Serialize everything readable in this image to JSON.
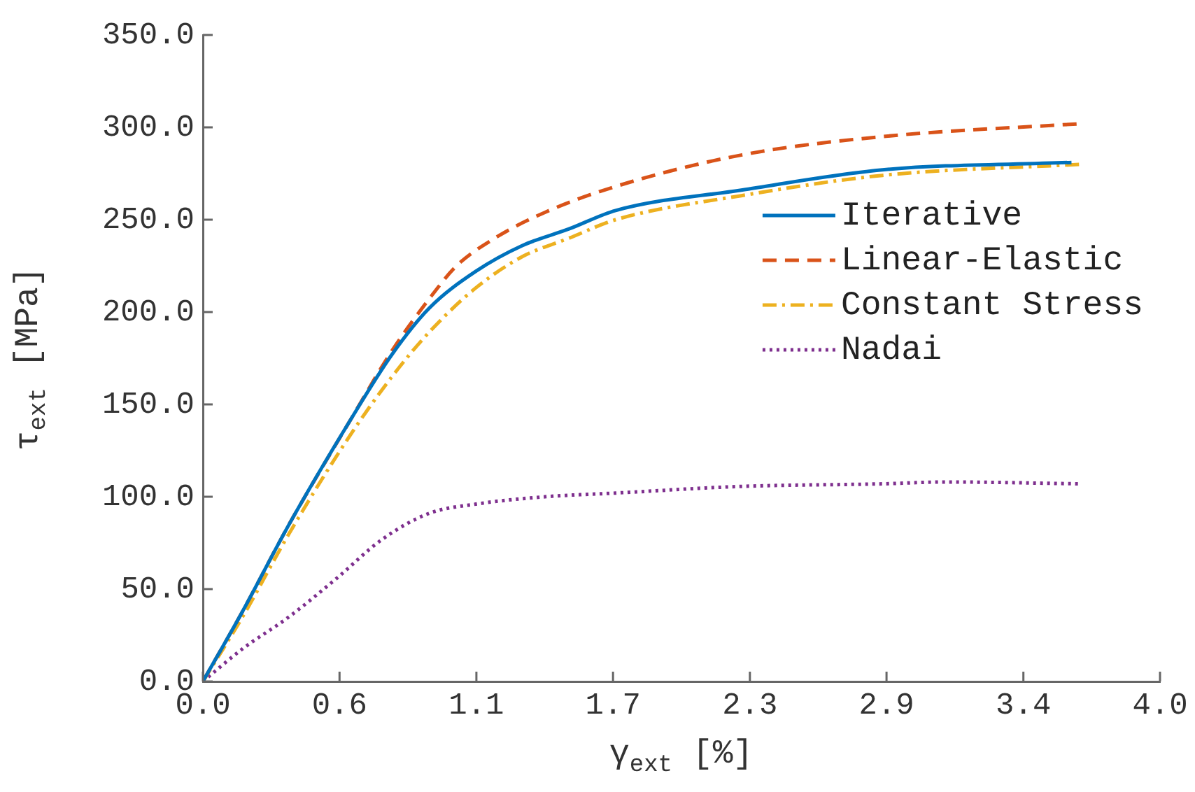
{
  "chart_data": {
    "type": "line",
    "xlabel": "γ$_{ext}$ [%]",
    "ylabel": "τ$_{ext}$ [MPa]",
    "xlim": [
      0,
      4.0
    ],
    "xticks": [
      {
        "value": 0,
        "label": "0.0"
      },
      {
        "value": 0.571,
        "label": "0.6"
      },
      {
        "value": 1.143,
        "label": "1.1"
      },
      {
        "value": 1.714,
        "label": "1.7"
      },
      {
        "value": 2.286,
        "label": "2.3"
      },
      {
        "value": 2.857,
        "label": "2.9"
      },
      {
        "value": 3.429,
        "label": "3.4"
      },
      {
        "value": 4.0,
        "label": "4.0"
      }
    ],
    "ylim": [
      0,
      350
    ],
    "yticks": [
      {
        "value": 0,
        "label": "0.0"
      },
      {
        "value": 50,
        "label": "50.0"
      },
      {
        "value": 100,
        "label": "100.0"
      },
      {
        "value": 150,
        "label": "150.0"
      },
      {
        "value": 200,
        "label": "200.0"
      },
      {
        "value": 250,
        "label": "250.0"
      },
      {
        "value": 300,
        "label": "300.0"
      },
      {
        "value": 350,
        "label": "350.0"
      }
    ],
    "grid": false,
    "legend": "right",
    "marker": "none",
    "series": [
      {
        "name": "Iterative",
        "color": "#0072bd",
        "line_style": "solid",
        "x": [
          0,
          0.166,
          0.36,
          0.614,
          0.79,
          0.945,
          1.14,
          1.335,
          1.53,
          1.725,
          2.25,
          2.84,
          3.63
        ],
        "values": [
          0,
          38,
          85,
          141,
          177,
          202,
          222,
          236,
          245,
          255,
          266,
          277,
          281
        ]
      },
      {
        "name": "Linear-Elastic",
        "color": "#d95319",
        "line_style": "dashed",
        "x": [
          0,
          0.166,
          0.36,
          0.614,
          0.79,
          0.945,
          1.06,
          1.22,
          1.43,
          1.725,
          2.25,
          2.84,
          3.67
        ],
        "values": [
          0,
          38,
          85,
          141,
          179,
          207,
          225,
          240,
          254,
          268,
          285,
          295,
          302
        ]
      },
      {
        "name": "Constant Stress",
        "color": "#edb120",
        "line_style": "dashdot",
        "x": [
          0,
          0.166,
          0.36,
          0.614,
          0.79,
          0.945,
          1.14,
          1.335,
          1.53,
          1.725,
          2.25,
          2.84,
          3.67
        ],
        "values": [
          0,
          35,
          80,
          133,
          165,
          189,
          213,
          230,
          240,
          250,
          263,
          274,
          280
        ]
      },
      {
        "name": "Nadai",
        "color": "#7e2f8e",
        "line_style": "dotted",
        "x": [
          0,
          0.166,
          0.36,
          0.556,
          0.75,
          0.945,
          1.14,
          1.43,
          1.725,
          2.25,
          2.84,
          3.1,
          3.67
        ],
        "values": [
          0,
          17.7,
          35,
          55.5,
          77,
          91,
          96,
          100,
          102,
          105.6,
          107,
          108,
          107
        ]
      }
    ]
  }
}
